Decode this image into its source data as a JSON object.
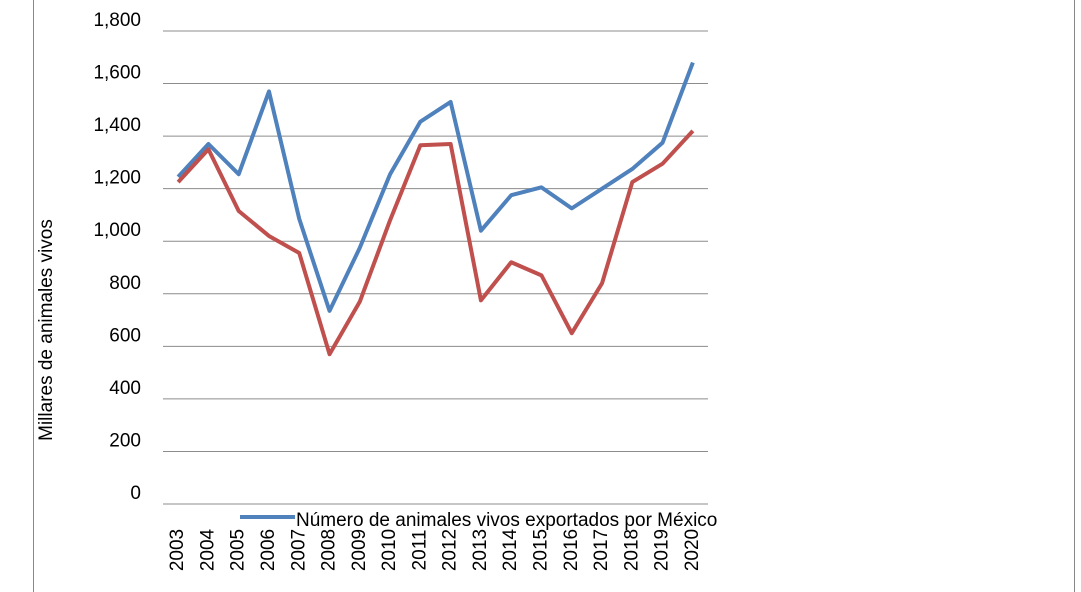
{
  "chart_data": {
    "type": "line",
    "y_label": "Millares de animales  vivos",
    "categories": [
      "2003",
      "2004",
      "2005",
      "2006",
      "2007",
      "2008",
      "2009",
      "2010",
      "2011",
      "2012",
      "2013",
      "2014",
      "2015",
      "2016",
      "2017",
      "2018",
      "2019",
      "2020"
    ],
    "series": [
      {
        "name": "Número de animales vivos exportados por México",
        "color": "#4f81bd",
        "values": [
          1245,
          1370,
          1255,
          1570,
          1085,
          735,
          975,
          1255,
          1455,
          1530,
          1040,
          1175,
          1205,
          1125,
          1200,
          1275,
          1375,
          1680
        ]
      },
      {
        "color": "#c0504d",
        "values": [
          1225,
          1350,
          1115,
          1020,
          955,
          570,
          770,
          1080,
          1365,
          1370,
          775,
          920,
          870,
          650,
          840,
          1225,
          1295,
          1420
        ]
      }
    ],
    "ylim": [
      0,
      1800
    ],
    "yticks": [
      0,
      200,
      400,
      600,
      800,
      {
        "value": 1000,
        "label": "1,000"
      },
      {
        "value": 1200,
        "label": "1,200"
      },
      {
        "value": 1400,
        "label": "1,400"
      },
      {
        "value": 1600,
        "label": "1,600"
      },
      {
        "value": 1800,
        "label": "1,800"
      }
    ],
    "grid": true
  }
}
